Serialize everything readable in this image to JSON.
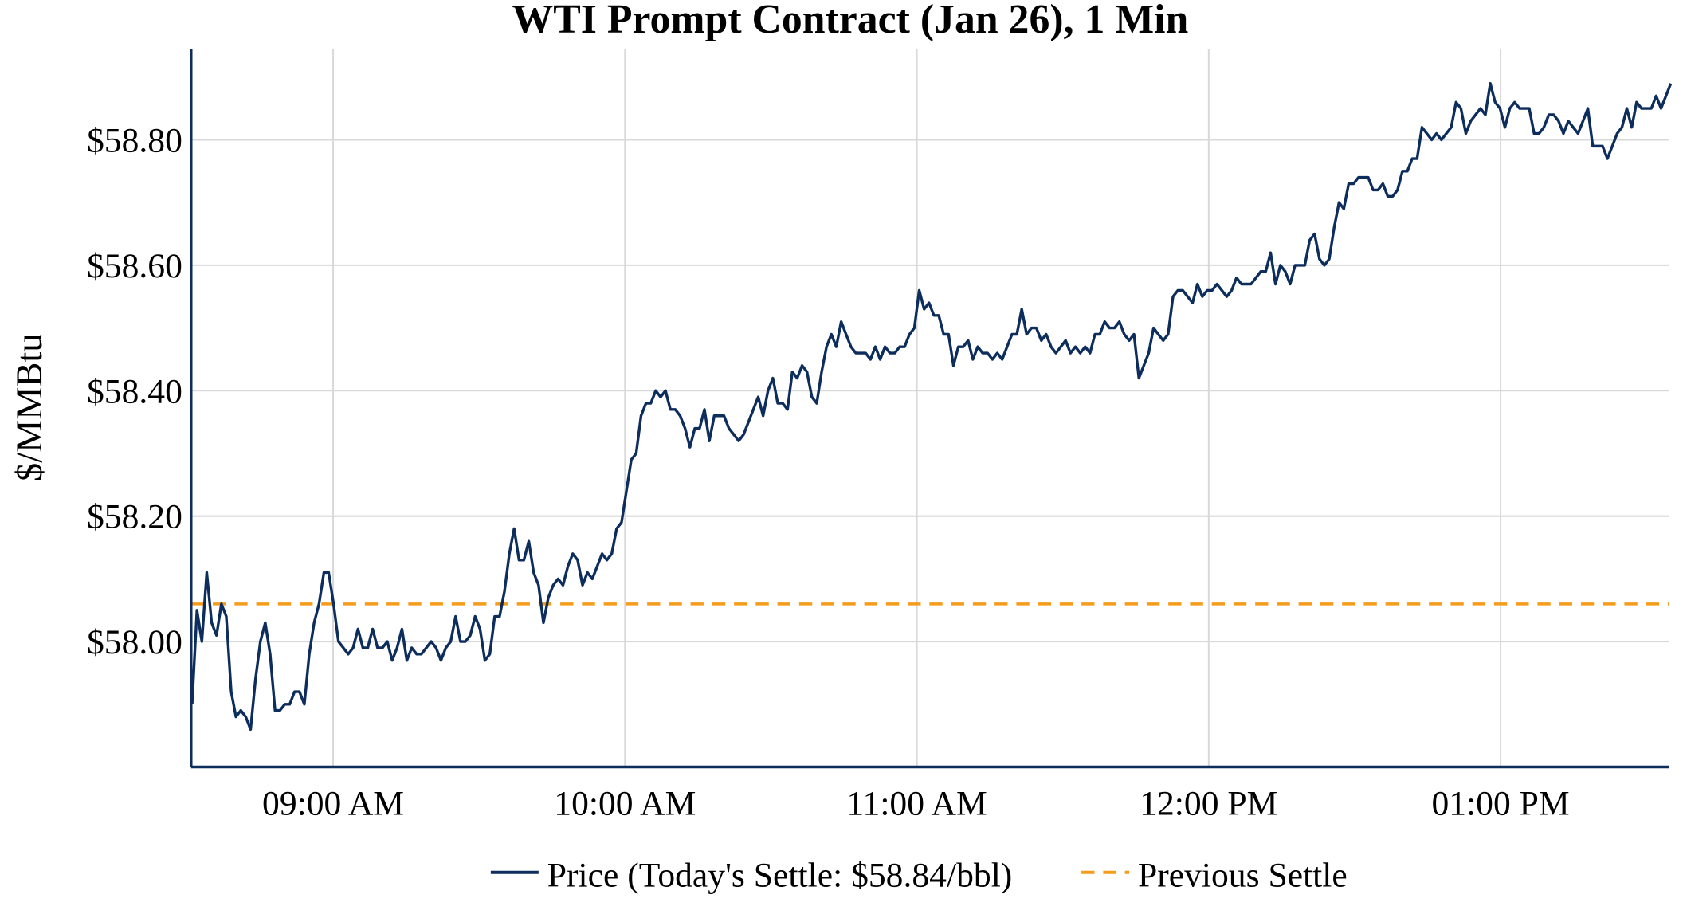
{
  "chart_data": {
    "type": "line",
    "title": "WTI Prompt Contract (Jan 26), 1 Min",
    "ylabel": "$/MMBtu",
    "xlabel": "",
    "ylim": [
      57.8,
      58.945
    ],
    "xlim": [
      "08:31",
      "13:35"
    ],
    "grid": true,
    "legend_placement": "bottom",
    "x_ticks": [
      {
        "time": "09:00",
        "label": "09:00 AM"
      },
      {
        "time": "10:00",
        "label": "10:00 AM"
      },
      {
        "time": "11:00",
        "label": "11:00 AM"
      },
      {
        "time": "12:00",
        "label": "12:00 PM"
      },
      {
        "time": "13:00",
        "label": "01:00 PM"
      }
    ],
    "y_ticks": [
      {
        "value": 58.0,
        "label": "$58.00"
      },
      {
        "value": 58.2,
        "label": "$58.20"
      },
      {
        "value": 58.4,
        "label": "$58.40"
      },
      {
        "value": 58.6,
        "label": "$58.60"
      },
      {
        "value": 58.8,
        "label": "$58.80"
      }
    ],
    "series": [
      {
        "name": "Price (Today's Settle: $58.84/bbl)",
        "color": "#0d2d5c",
        "style": "solid",
        "x_start": "08:31",
        "x_end": "13:35",
        "values": [
          57.9,
          58.05,
          58.0,
          58.11,
          58.03,
          58.01,
          58.06,
          58.04,
          57.92,
          57.88,
          57.89,
          57.88,
          57.86,
          57.94,
          58.0,
          58.03,
          57.98,
          57.89,
          57.89,
          57.9,
          57.9,
          57.92,
          57.92,
          57.9,
          57.98,
          58.03,
          58.06,
          58.11,
          58.11,
          58.06,
          58.0,
          57.99,
          57.98,
          57.99,
          58.02,
          57.99,
          57.99,
          58.02,
          57.99,
          57.99,
          58.0,
          57.97,
          57.99,
          58.02,
          57.97,
          57.99,
          57.98,
          57.98,
          57.99,
          58.0,
          57.99,
          57.97,
          57.99,
          58.0,
          58.04,
          58.0,
          58.0,
          58.01,
          58.04,
          58.02,
          57.97,
          57.98,
          58.04,
          58.04,
          58.08,
          58.14,
          58.18,
          58.13,
          58.13,
          58.16,
          58.11,
          58.09,
          58.03,
          58.07,
          58.09,
          58.1,
          58.09,
          58.12,
          58.14,
          58.13,
          58.09,
          58.11,
          58.1,
          58.12,
          58.14,
          58.13,
          58.14,
          58.18,
          58.19,
          58.24,
          58.29,
          58.3,
          58.36,
          58.38,
          58.38,
          58.4,
          58.39,
          58.4,
          58.37,
          58.37,
          58.36,
          58.34,
          58.31,
          58.34,
          58.34,
          58.37,
          58.32,
          58.36,
          58.36,
          58.36,
          58.34,
          58.33,
          58.32,
          58.33,
          58.35,
          58.37,
          58.39,
          58.36,
          58.4,
          58.42,
          58.38,
          58.38,
          58.37,
          58.43,
          58.42,
          58.44,
          58.43,
          58.39,
          58.38,
          58.43,
          58.47,
          58.49,
          58.47,
          58.51,
          58.49,
          58.47,
          58.46,
          58.46,
          58.46,
          58.45,
          58.47,
          58.45,
          58.47,
          58.46,
          58.46,
          58.47,
          58.47,
          58.49,
          58.5,
          58.56,
          58.53,
          58.54,
          58.52,
          58.52,
          58.49,
          58.49,
          58.44,
          58.47,
          58.47,
          58.48,
          58.45,
          58.47,
          58.46,
          58.46,
          58.45,
          58.46,
          58.45,
          58.47,
          58.49,
          58.49,
          58.53,
          58.49,
          58.5,
          58.5,
          58.48,
          58.49,
          58.47,
          58.46,
          58.47,
          58.48,
          58.46,
          58.47,
          58.46,
          58.47,
          58.46,
          58.49,
          58.49,
          58.51,
          58.5,
          58.5,
          58.51,
          58.49,
          58.48,
          58.49,
          58.42,
          58.44,
          58.46,
          58.5,
          58.49,
          58.48,
          58.49,
          58.55,
          58.56,
          58.56,
          58.55,
          58.54,
          58.57,
          58.55,
          58.56,
          58.56,
          58.57,
          58.56,
          58.55,
          58.56,
          58.58,
          58.57,
          58.57,
          58.57,
          58.58,
          58.59,
          58.59,
          58.62,
          58.57,
          58.6,
          58.59,
          58.57,
          58.6,
          58.6,
          58.6,
          58.64,
          58.65,
          58.61,
          58.6,
          58.61,
          58.66,
          58.7,
          58.69,
          58.73,
          58.73,
          58.74,
          58.74,
          58.74,
          58.72,
          58.72,
          58.73,
          58.71,
          58.71,
          58.72,
          58.75,
          58.75,
          58.77,
          58.77,
          58.82,
          58.81,
          58.8,
          58.81,
          58.8,
          58.81,
          58.82,
          58.86,
          58.85,
          58.81,
          58.83,
          58.84,
          58.85,
          58.84,
          58.89,
          58.86,
          58.85,
          58.82,
          58.85,
          58.86,
          58.85,
          58.85,
          58.85,
          58.81,
          58.81,
          58.82,
          58.84,
          58.84,
          58.83,
          58.81,
          58.83,
          58.82,
          58.81,
          58.83,
          58.85,
          58.79,
          58.79,
          58.79,
          58.77,
          58.79,
          58.81,
          58.82,
          58.85,
          58.82,
          58.86,
          58.85,
          58.85,
          58.85,
          58.87,
          58.85,
          58.87,
          58.89
        ]
      },
      {
        "name": "Previous Settle",
        "color": "#f59c1a",
        "style": "dashed",
        "value": 58.06
      }
    ]
  }
}
